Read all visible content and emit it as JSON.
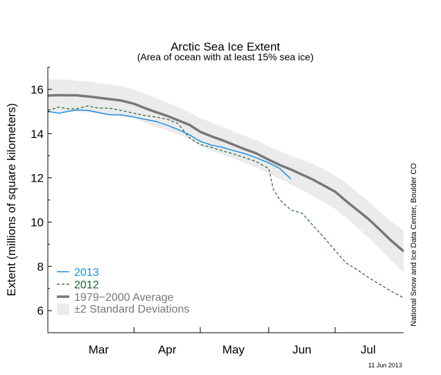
{
  "chart_data": {
    "type": "line",
    "title": "Arctic Sea Ice Extent",
    "subtitle": "(Area of ocean with at least 15% sea ice)",
    "ylabel": "Extent (millions of square kilometers)",
    "xlabel": "",
    "ylim": [
      5,
      17
    ],
    "yticks": [
      6,
      8,
      10,
      12,
      14,
      16
    ],
    "x_tick_labels": [
      "Mar",
      "Apr",
      "May",
      "Jun",
      "Jul"
    ],
    "x_domain": [
      "2013-02-20",
      "2013-07-31"
    ],
    "x_label_dates": [
      "2013-03-15",
      "2013-04-15",
      "2013-05-15",
      "2013-06-15",
      "2013-07-15"
    ],
    "x_gridlines": [
      "2013-03-31",
      "2013-04-30",
      "2013-05-31",
      "2013-06-30"
    ],
    "grid": false,
    "legend_position": "bottom-left",
    "series": [
      {
        "name": "2013",
        "style": "solid",
        "color": "#1a8fe0",
        "x": [
          "2013-02-20",
          "2013-02-25",
          "2013-03-01",
          "2013-03-05",
          "2013-03-10",
          "2013-03-15",
          "2013-03-20",
          "2013-03-25",
          "2013-03-31",
          "2013-04-05",
          "2013-04-10",
          "2013-04-15",
          "2013-04-20",
          "2013-04-25",
          "2013-04-30",
          "2013-05-05",
          "2013-05-10",
          "2013-05-15",
          "2013-05-20",
          "2013-05-25",
          "2013-05-31",
          "2013-06-05",
          "2013-06-10"
        ],
        "y": [
          15.0,
          14.92,
          15.0,
          15.07,
          15.05,
          14.95,
          14.85,
          14.85,
          14.75,
          14.64,
          14.55,
          14.38,
          14.18,
          13.95,
          13.65,
          13.48,
          13.38,
          13.23,
          13.1,
          12.92,
          12.68,
          12.42,
          11.95
        ]
      },
      {
        "name": "2012",
        "style": "dashed",
        "color": "#1f5e28",
        "x": [
          "2013-02-20",
          "2013-02-25",
          "2013-03-01",
          "2013-03-05",
          "2013-03-10",
          "2013-03-15",
          "2013-03-20",
          "2013-03-25",
          "2013-03-31",
          "2013-04-05",
          "2013-04-10",
          "2013-04-15",
          "2013-04-20",
          "2013-04-25",
          "2013-04-30",
          "2013-05-05",
          "2013-05-10",
          "2013-05-15",
          "2013-05-20",
          "2013-05-25",
          "2013-05-31",
          "2013-06-02",
          "2013-06-05",
          "2013-06-10",
          "2013-06-15",
          "2013-06-20",
          "2013-06-25",
          "2013-06-30",
          "2013-07-05",
          "2013-07-10",
          "2013-07-15",
          "2013-07-20",
          "2013-07-25",
          "2013-07-31"
        ],
        "y": [
          15.05,
          15.2,
          15.12,
          15.12,
          15.25,
          15.15,
          15.15,
          15.05,
          14.92,
          14.82,
          14.75,
          14.65,
          14.45,
          13.82,
          13.5,
          13.38,
          13.22,
          13.08,
          12.92,
          12.75,
          12.42,
          11.5,
          11.0,
          10.55,
          10.4,
          9.85,
          9.3,
          8.72,
          8.15,
          7.85,
          7.5,
          7.2,
          6.9,
          6.58
        ]
      },
      {
        "name": "1979−2000 Average",
        "style": "solid",
        "color": "#777777",
        "x": [
          "2013-02-20",
          "2013-02-25",
          "2013-03-01",
          "2013-03-05",
          "2013-03-10",
          "2013-03-15",
          "2013-03-20",
          "2013-03-25",
          "2013-03-31",
          "2013-04-05",
          "2013-04-10",
          "2013-04-15",
          "2013-04-20",
          "2013-04-25",
          "2013-04-30",
          "2013-05-05",
          "2013-05-10",
          "2013-05-15",
          "2013-05-20",
          "2013-05-25",
          "2013-05-31",
          "2013-06-05",
          "2013-06-10",
          "2013-06-15",
          "2013-06-20",
          "2013-06-25",
          "2013-06-30",
          "2013-07-05",
          "2013-07-10",
          "2013-07-15",
          "2013-07-20",
          "2013-07-25",
          "2013-07-31"
        ],
        "y": [
          15.72,
          15.74,
          15.73,
          15.73,
          15.68,
          15.62,
          15.56,
          15.5,
          15.35,
          15.15,
          14.97,
          14.8,
          14.6,
          14.4,
          14.08,
          13.88,
          13.7,
          13.5,
          13.3,
          13.12,
          12.82,
          12.58,
          12.38,
          12.15,
          11.92,
          11.65,
          11.38,
          10.95,
          10.55,
          10.15,
          9.68,
          9.2,
          8.68
        ]
      }
    ],
    "band": {
      "name": "±2 Standard Deviations",
      "color": "#ebebeb",
      "x": [
        "2013-02-20",
        "2013-02-25",
        "2013-03-01",
        "2013-03-05",
        "2013-03-10",
        "2013-03-15",
        "2013-03-20",
        "2013-03-25",
        "2013-03-31",
        "2013-04-05",
        "2013-04-10",
        "2013-04-15",
        "2013-04-20",
        "2013-04-25",
        "2013-04-30",
        "2013-05-05",
        "2013-05-10",
        "2013-05-15",
        "2013-05-20",
        "2013-05-25",
        "2013-05-31",
        "2013-06-05",
        "2013-06-10",
        "2013-06-15",
        "2013-06-20",
        "2013-06-25",
        "2013-06-30",
        "2013-07-05",
        "2013-07-10",
        "2013-07-15",
        "2013-07-20",
        "2013-07-25",
        "2013-07-31"
      ],
      "upper": [
        16.45,
        16.45,
        16.45,
        16.4,
        16.35,
        16.28,
        16.22,
        16.15,
        16.0,
        15.8,
        15.6,
        15.4,
        15.2,
        14.98,
        14.7,
        14.5,
        14.3,
        14.1,
        13.9,
        13.72,
        13.42,
        13.2,
        13.0,
        12.82,
        12.62,
        12.38,
        12.1,
        11.75,
        11.35,
        10.95,
        10.5,
        10.05,
        9.62
      ],
      "lower": [
        14.95,
        14.97,
        14.98,
        14.98,
        14.95,
        14.9,
        14.85,
        14.8,
        14.68,
        14.5,
        14.3,
        14.15,
        13.95,
        13.75,
        13.45,
        13.25,
        13.05,
        12.88,
        12.68,
        12.48,
        12.2,
        11.95,
        11.72,
        11.45,
        11.18,
        10.9,
        10.6,
        10.2,
        9.75,
        9.3,
        8.82,
        8.3,
        7.72
      ]
    },
    "annotations": {
      "credit": "National Snow and Ice Data Center, Boulder CO",
      "date": "11 Jun 2013"
    }
  },
  "colors": {
    "series_2013": "#1a8fe0",
    "series_2012": "#1f5e28",
    "average": "#777777",
    "band": "#ebebeb",
    "legend_band_label": "#777777"
  }
}
